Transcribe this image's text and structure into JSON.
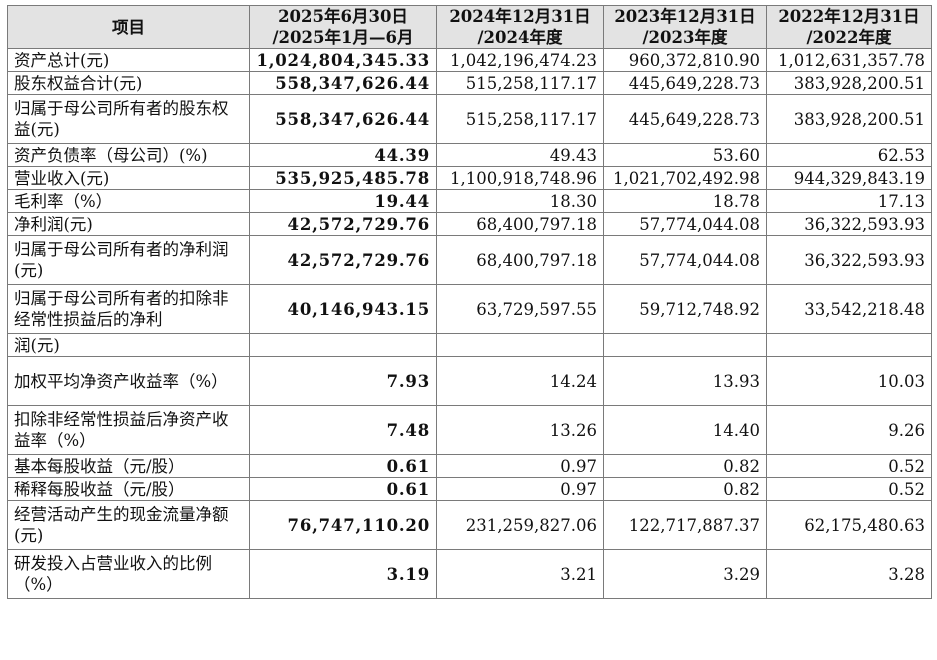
{
  "table": {
    "headers": [
      {
        "line1": "项目",
        "line2": ""
      },
      {
        "line1": "2025年6月30日",
        "line2": "/2025年1月—6月"
      },
      {
        "line1": "2024年12月31日",
        "line2": "/2024年度"
      },
      {
        "line1": "2023年12月31日",
        "line2": "/2023年度"
      },
      {
        "line1": "2022年12月31日",
        "line2": "/2022年度"
      }
    ],
    "rows": [
      {
        "item": "资产总计(元)",
        "v2025": "1,024,804,345.33",
        "v2024": "1,042,196,474.23",
        "v2023": "960,372,810.90",
        "v2022": "1,012,631,357.78"
      },
      {
        "item": "股东权益合计(元)",
        "v2025": "558,347,626.44",
        "v2024": "515,258,117.17",
        "v2023": "445,649,228.73",
        "v2022": "383,928,200.51"
      },
      {
        "item": "归属于母公司所有者的股东权益(元)",
        "v2025": "558,347,626.44",
        "v2024": "515,258,117.17",
        "v2023": "445,649,228.73",
        "v2022": "383,928,200.51"
      },
      {
        "item": "资产负债率（母公司）(%)",
        "v2025": "44.39",
        "v2024": "49.43",
        "v2023": "53.60",
        "v2022": "62.53"
      },
      {
        "item": "营业收入(元)",
        "v2025": "535,925,485.78",
        "v2024": "1,100,918,748.96",
        "v2023": "1,021,702,492.98",
        "v2022": "944,329,843.19"
      },
      {
        "item": "毛利率（%）",
        "v2025": "19.44",
        "v2024": "18.30",
        "v2023": "18.78",
        "v2022": "17.13"
      },
      {
        "item": "净利润(元)",
        "v2025": "42,572,729.76",
        "v2024": "68,400,797.18",
        "v2023": "57,774,044.08",
        "v2022": "36,322,593.93"
      },
      {
        "item": "归属于母公司所有者的净利润(元)",
        "v2025": "42,572,729.76",
        "v2024": "68,400,797.18",
        "v2023": "57,774,044.08",
        "v2022": "36,322,593.93"
      },
      {
        "item": "归属于母公司所有者的扣除非经常性损益后的净利",
        "v2025": "40,146,943.15",
        "v2024": "63,729,597.55",
        "v2023": "59,712,748.92",
        "v2022": "33,542,218.48"
      },
      {
        "item": "润(元)",
        "v2025": "",
        "v2024": "",
        "v2023": "",
        "v2022": ""
      },
      {
        "item": "加权平均净资产收益率（%）",
        "v2025": "7.93",
        "v2024": "14.24",
        "v2023": "13.93",
        "v2022": "10.03"
      },
      {
        "item": "扣除非经常性损益后净资产收益率（%）",
        "v2025": "7.48",
        "v2024": "13.26",
        "v2023": "14.40",
        "v2022": "9.26"
      },
      {
        "item": "基本每股收益（元/股）",
        "v2025": "0.61",
        "v2024": "0.97",
        "v2023": "0.82",
        "v2022": "0.52"
      },
      {
        "item": "稀释每股收益（元/股）",
        "v2025": "0.61",
        "v2024": "0.97",
        "v2023": "0.82",
        "v2022": "0.52"
      },
      {
        "item": "经营活动产生的现金流量净额(元)",
        "v2025": "76,747,110.20",
        "v2024": "231,259,827.06",
        "v2023": "122,717,887.37",
        "v2022": "62,175,480.63"
      },
      {
        "item": "研发投入占营业收入的比例（%）",
        "v2025": "3.19",
        "v2024": "3.21",
        "v2023": "3.29",
        "v2022": "3.28"
      }
    ]
  }
}
